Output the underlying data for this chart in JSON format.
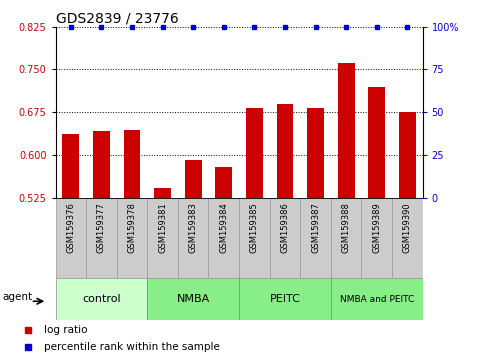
{
  "title": "GDS2839 / 23776",
  "samples": [
    "GSM159376",
    "GSM159377",
    "GSM159378",
    "GSM159381",
    "GSM159383",
    "GSM159384",
    "GSM159385",
    "GSM159386",
    "GSM159387",
    "GSM159388",
    "GSM159389",
    "GSM159390"
  ],
  "log_ratios": [
    0.637,
    0.642,
    0.645,
    0.543,
    0.592,
    0.58,
    0.682,
    0.69,
    0.682,
    0.762,
    0.72,
    0.675
  ],
  "bar_color": "#cc0000",
  "dot_color": "#0000cc",
  "ylim_left": [
    0.525,
    0.825
  ],
  "ylim_right": [
    0,
    100
  ],
  "yticks_left": [
    0.525,
    0.6,
    0.675,
    0.75,
    0.825
  ],
  "yticks_right": [
    0,
    25,
    50,
    75,
    100
  ],
  "groups": [
    {
      "label": "control",
      "start": 0,
      "end": 3,
      "light": true
    },
    {
      "label": "NMBA",
      "start": 3,
      "end": 6,
      "light": false
    },
    {
      "label": "PEITC",
      "start": 6,
      "end": 9,
      "light": false
    },
    {
      "label": "NMBA and PEITC",
      "start": 9,
      "end": 12,
      "light": false
    }
  ],
  "group_color_light": "#ccffcc",
  "group_color_dark": "#88ee88",
  "sample_box_color": "#cccccc",
  "legend_items": [
    {
      "label": "log ratio",
      "color": "#cc0000"
    },
    {
      "label": "percentile rank within the sample",
      "color": "#0000cc"
    }
  ],
  "agent_label": "agent",
  "bar_width": 0.55,
  "title_fontsize": 10,
  "tick_fontsize": 7,
  "sample_fontsize": 6,
  "group_label_fontsize": 8,
  "legend_fontsize": 7.5
}
